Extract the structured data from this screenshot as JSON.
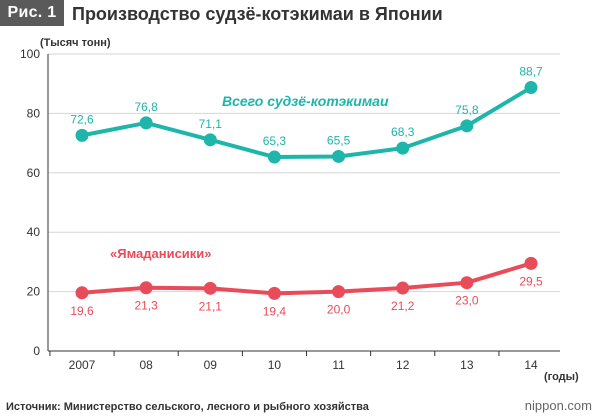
{
  "header": {
    "badge": "Рис. 1",
    "title": "Производство судзё-котэкимаи в Японии"
  },
  "footer": {
    "source": "Источник: Министерство сельского, лесного и рыбного хозяйства",
    "brand": "nippon.com"
  },
  "colors": {
    "series1": "#1eb5aa",
    "series2": "#e84c5a",
    "axis": "#333333",
    "grid": "#d6d6d6"
  },
  "chart_data": {
    "type": "line",
    "title": "Производство судзё-котэкимаи в Японии",
    "ylabel": "(Тысяч тонн)",
    "xlabel": "(годы)",
    "ylim": [
      0,
      100
    ],
    "yticks": [
      0,
      20,
      40,
      60,
      80,
      100
    ],
    "grid": "horizontal",
    "categories": [
      "2007",
      "08",
      "09",
      "10",
      "11",
      "12",
      "13",
      "14"
    ],
    "series": [
      {
        "name": "Всего судзё-котэкимаи",
        "values": [
          72.6,
          76.8,
          71.1,
          65.3,
          65.5,
          68.3,
          75.8,
          88.7
        ],
        "labels": [
          "72,6",
          "76,8",
          "71,1",
          "65,3",
          "65,5",
          "68,3",
          "75,8",
          "88,7"
        ],
        "label_position": "above"
      },
      {
        "name": "«Ямаданисики»",
        "values": [
          19.6,
          21.3,
          21.1,
          19.4,
          20.0,
          21.2,
          23.0,
          29.5
        ],
        "labels": [
          "19,6",
          "21,3",
          "21,1",
          "19,4",
          "20,0",
          "21,2",
          "23,0",
          "29,5"
        ],
        "label_position": "below"
      }
    ]
  }
}
